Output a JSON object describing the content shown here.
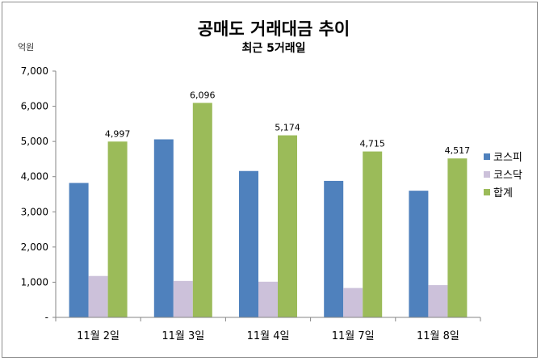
{
  "chart_data": {
    "type": "bar",
    "title": "공매도 거래대금 추이",
    "subtitle": "최근 5거래일",
    "unit_label": "억원",
    "categories": [
      "11월 2일",
      "11월 3일",
      "11월 4일",
      "11월 7일",
      "11월 8일"
    ],
    "series": [
      {
        "name": "코스피",
        "color": "#4f81bd",
        "values": [
          3820,
          5060,
          4160,
          3880,
          3600
        ]
      },
      {
        "name": "코스닥",
        "color": "#ccc1da",
        "values": [
          1177,
          1036,
          1014,
          835,
          917
        ]
      },
      {
        "name": "합계",
        "color": "#9bbb59",
        "values": [
          4997,
          6096,
          5174,
          4715,
          4517
        ],
        "labels": [
          "4,997",
          "6,096",
          "5,174",
          "4,715",
          "4,517"
        ]
      }
    ],
    "ylim": [
      0,
      7000
    ],
    "yticks": [
      0,
      1000,
      2000,
      3000,
      4000,
      5000,
      6000,
      7000
    ],
    "ytick_labels": [
      "-",
      "1,000",
      "2,000",
      "3,000",
      "4,000",
      "5,000",
      "6,000",
      "7,000"
    ],
    "legend_position": "right",
    "grid": false
  }
}
